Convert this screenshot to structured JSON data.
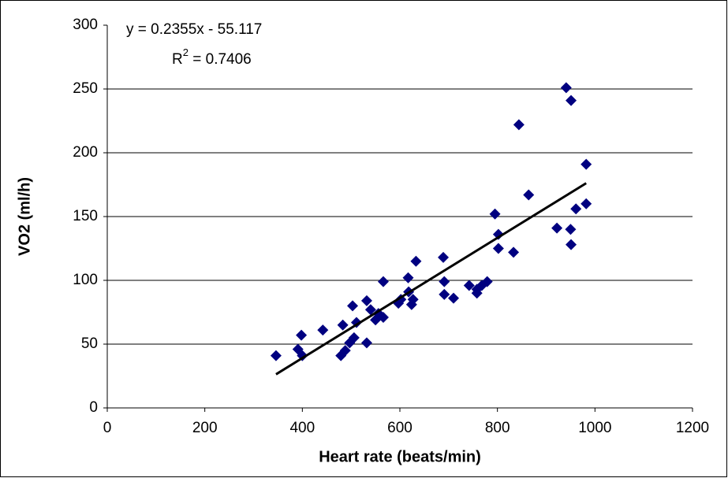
{
  "chart_data": {
    "type": "scatter",
    "x_label": "Heart rate (beats/min)",
    "y_label": "VO2 (ml/h)",
    "annotations": {
      "equation": "y = 0.2355x - 55.117",
      "r_squared": {
        "prefix": "R",
        "superscript": "2",
        "rest": " = 0.7406"
      }
    },
    "trendline": {
      "slope": 0.2355,
      "intercept": -55.117,
      "color": "#000000"
    },
    "series": [
      {
        "color": "#000080",
        "x": [
          346,
          391,
          398,
          400,
          442,
          479,
          488,
          483,
          503,
          497,
          506,
          511,
          532,
          532,
          540,
          550,
          556,
          566,
          566,
          597,
          602,
          617,
          618,
          624,
          627,
          633,
          689,
          691,
          691,
          710,
          742,
          758,
          758,
          768,
          779,
          795,
          802,
          802,
          833,
          844,
          864,
          922,
          941,
          950,
          951,
          951,
          961,
          982,
          982
        ],
        "values": [
          41,
          46,
          57,
          41,
          61,
          41,
          45,
          65,
          80,
          51,
          55,
          67,
          84,
          51,
          77,
          69,
          74,
          71,
          99,
          82,
          85,
          102,
          91,
          81,
          85,
          115,
          118,
          99,
          89,
          86,
          96,
          93,
          90,
          96,
          99,
          152,
          136,
          125,
          122,
          222,
          167,
          141,
          251,
          140,
          128,
          241,
          156,
          160,
          191
        ]
      }
    ],
    "xlim": [
      0,
      1200
    ],
    "xticks": [
      0,
      200,
      400,
      600,
      800,
      1000,
      1200
    ],
    "ylim": [
      0,
      300
    ],
    "yticks": [
      0,
      50,
      100,
      150,
      200,
      250,
      300
    ],
    "grid": true
  }
}
